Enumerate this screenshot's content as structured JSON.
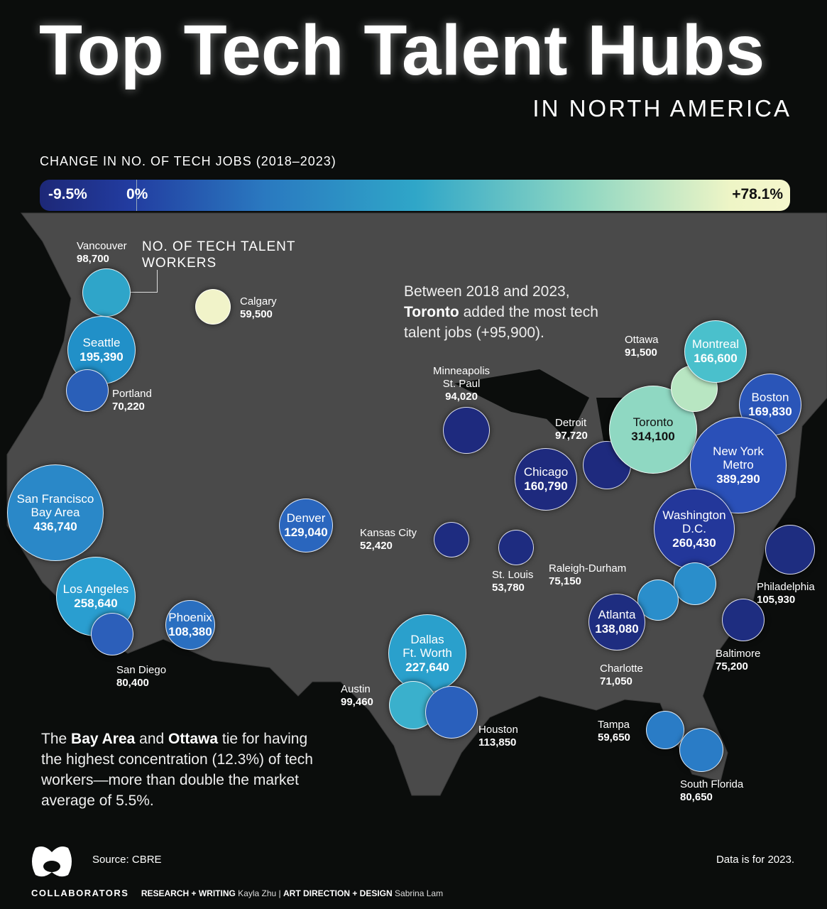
{
  "header": {
    "title": "Top Tech Talent Hubs",
    "subtitle": "IN NORTH AMERICA"
  },
  "scale": {
    "label": "CHANGE IN NO. OF TECH JOBS (2018–2023)",
    "min": "-9.5%",
    "zero": "0%",
    "max": "+78.1%",
    "colors": [
      "#1d2877",
      "#2a79c0",
      "#2fa6c8",
      "#8dd6c2",
      "#f5f7cc"
    ]
  },
  "legend": {
    "title": "NO. OF TECH TALENT WORKERS"
  },
  "notes": {
    "toronto": {
      "pre": "Between 2018 and 2023,",
      "bold": "Toronto",
      "post": "added the most tech talent jobs (+95,900)."
    },
    "bay": {
      "pre": "The",
      "b1": "Bay Area",
      "mid": "and",
      "b2": "Ottawa",
      "post": "tie for having the highest concentration (12.3%) of tech workers—more than double the market average of 5.5%."
    }
  },
  "cities": [
    {
      "name": "Vancouver",
      "value": "98,700",
      "color": "#2fa5c9"
    },
    {
      "name": "Calgary",
      "value": "59,500",
      "color": "#f1f3c9"
    },
    {
      "name": "Seattle",
      "value": "195,390",
      "color": "#2190c8"
    },
    {
      "name": "Portland",
      "value": "70,220",
      "color": "#2a5fb8"
    },
    {
      "name": "San Francisco Bay Area",
      "value": "436,740",
      "color": "#2a88c8"
    },
    {
      "name": "Los Angeles",
      "value": "258,640",
      "color": "#2a9ed0"
    },
    {
      "name": "San Diego",
      "value": "80,400",
      "color": "#2c5fba"
    },
    {
      "name": "Phoenix",
      "value": "108,380",
      "color": "#2a6fc0"
    },
    {
      "name": "Denver",
      "value": "129,040",
      "color": "#2a66be"
    },
    {
      "name": "Kansas City",
      "value": "52,420",
      "color": "#1e2c80"
    },
    {
      "name": "St. Louis",
      "value": "53,780",
      "color": "#1e2c80"
    },
    {
      "name": "Minneapolis St. Paul",
      "value": "94,020",
      "color": "#1e2a7e"
    },
    {
      "name": "Chicago",
      "value": "160,790",
      "color": "#1e2a7e"
    },
    {
      "name": "Detroit",
      "value": "97,720",
      "color": "#1e2a7e"
    },
    {
      "name": "Toronto",
      "value": "314,100",
      "color": "#8fd8c2"
    },
    {
      "name": "Ottawa",
      "value": "91,500",
      "color": "#b8e6c2"
    },
    {
      "name": "Montreal",
      "value": "166,600",
      "color": "#4ac0cc"
    },
    {
      "name": "Boston",
      "value": "169,830",
      "color": "#2a55b8"
    },
    {
      "name": "New York Metro",
      "value": "389,290",
      "color": "#2a50b8"
    },
    {
      "name": "Washington D.C.",
      "value": "260,430",
      "color": "#23379a"
    },
    {
      "name": "Philadelphia",
      "value": "105,930",
      "color": "#1e2d80"
    },
    {
      "name": "Baltimore",
      "value": "75,200",
      "color": "#1e2d80"
    },
    {
      "name": "Raleigh-Durham",
      "value": "75,150",
      "color": "#2a8ecb"
    },
    {
      "name": "Charlotte",
      "value": "71,050",
      "color": "#2a8ecb"
    },
    {
      "name": "Atlanta",
      "value": "138,080",
      "color": "#1e2d80"
    },
    {
      "name": "Dallas Ft. Worth",
      "value": "227,640",
      "color": "#2aa0cc"
    },
    {
      "name": "Austin",
      "value": "99,460",
      "color": "#3ab0cc"
    },
    {
      "name": "Houston",
      "value": "113,850",
      "color": "#2a60bc"
    },
    {
      "name": "Tampa",
      "value": "59,650",
      "color": "#2a7cc6"
    },
    {
      "name": "South Florida",
      "value": "80,650",
      "color": "#2a7cc6"
    }
  ],
  "footer": {
    "source": "Source: CBRE",
    "data_note": "Data is for 2023.",
    "brand": "COLLABORATORS",
    "research_label": "RESEARCH + WRITING",
    "research_name": "Kayla Zhu",
    "design_label": "ART DIRECTION + DESIGN",
    "design_name": "Sabrina Lam"
  }
}
